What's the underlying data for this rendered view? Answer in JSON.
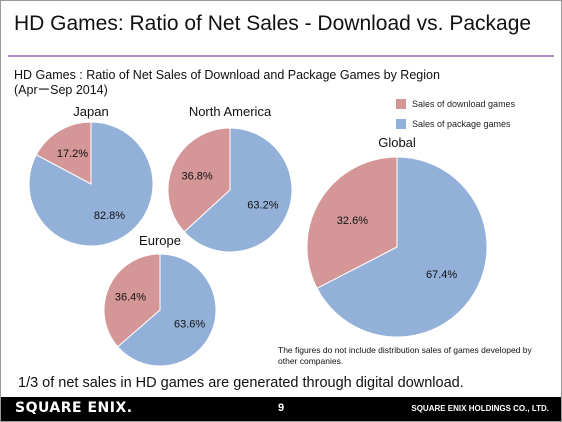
{
  "slide": {
    "title": "HD Games: Ratio of Net Sales - Download vs. Package",
    "subtitle_line1": "HD Games : Ratio of Net Sales of Download and Package Games by Region",
    "subtitle_line2": "(AprーSep 2014)",
    "note": "The figures do not include distribution sales of games developed by other companies.",
    "conclusion": "1/3 of net sales in HD games are generated through digital download.",
    "footer": {
      "logo": "SQUARE ENIX.",
      "page_number": "9",
      "company": "SQUARE ENIX HOLDINGS CO., LTD."
    }
  },
  "legend": {
    "download": "Sales of download games",
    "package": "Sales of package games"
  },
  "colors": {
    "download": "#d49696",
    "package": "#93b0d8",
    "title_rule": "#b08cc0"
  },
  "chart_data": [
    {
      "type": "pie",
      "title": "Japan",
      "categories": [
        "Sales of download games",
        "Sales of package games"
      ],
      "values": [
        17.2,
        82.8
      ],
      "labels": [
        "17.2%",
        "82.8%"
      ]
    },
    {
      "type": "pie",
      "title": "North America",
      "categories": [
        "Sales of download games",
        "Sales of package games"
      ],
      "values": [
        36.8,
        63.2
      ],
      "labels": [
        "36.8%",
        "63.2%"
      ]
    },
    {
      "type": "pie",
      "title": "Europe",
      "categories": [
        "Sales of download games",
        "Sales of package games"
      ],
      "values": [
        36.4,
        63.6
      ],
      "labels": [
        "36.4%",
        "63.6%"
      ]
    },
    {
      "type": "pie",
      "title": "Global",
      "categories": [
        "Sales of download games",
        "Sales of package games"
      ],
      "values": [
        32.6,
        67.4
      ],
      "labels": [
        "32.6%",
        "67.4%"
      ]
    }
  ]
}
